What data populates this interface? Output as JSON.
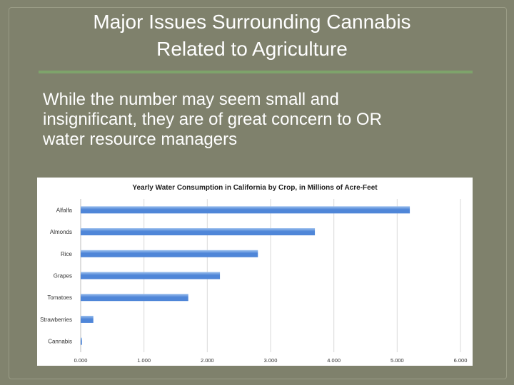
{
  "slide": {
    "title_line1": "Major Issues Surrounding Cannabis",
    "title_line2": "Related to Agriculture",
    "body_line1": "While the number may seem small and",
    "body_line2": "insignificant, they are of great concern to OR",
    "body_line3": "water resource managers"
  },
  "chart_data": {
    "type": "bar",
    "orientation": "horizontal",
    "title": "Yearly Water Consumption in California by Crop, in Millions of Acre-Feet",
    "categories": [
      "Alfalfa",
      "Almonds",
      "Rice",
      "Grapes",
      "Tomatoes",
      "Strawberries",
      "Cannabis"
    ],
    "values": [
      5.2,
      3.7,
      2.8,
      2.2,
      1.7,
      0.2,
      0.02
    ],
    "xlim": [
      0,
      6
    ],
    "xticks": [
      "0.000",
      "1.000",
      "2.000",
      "3.000",
      "4.000",
      "5.000",
      "6.000"
    ],
    "xlabel": "",
    "ylabel": "",
    "grid": true,
    "bar_color": "#4f86d8",
    "bar_highlight": "#9cc0ee"
  }
}
